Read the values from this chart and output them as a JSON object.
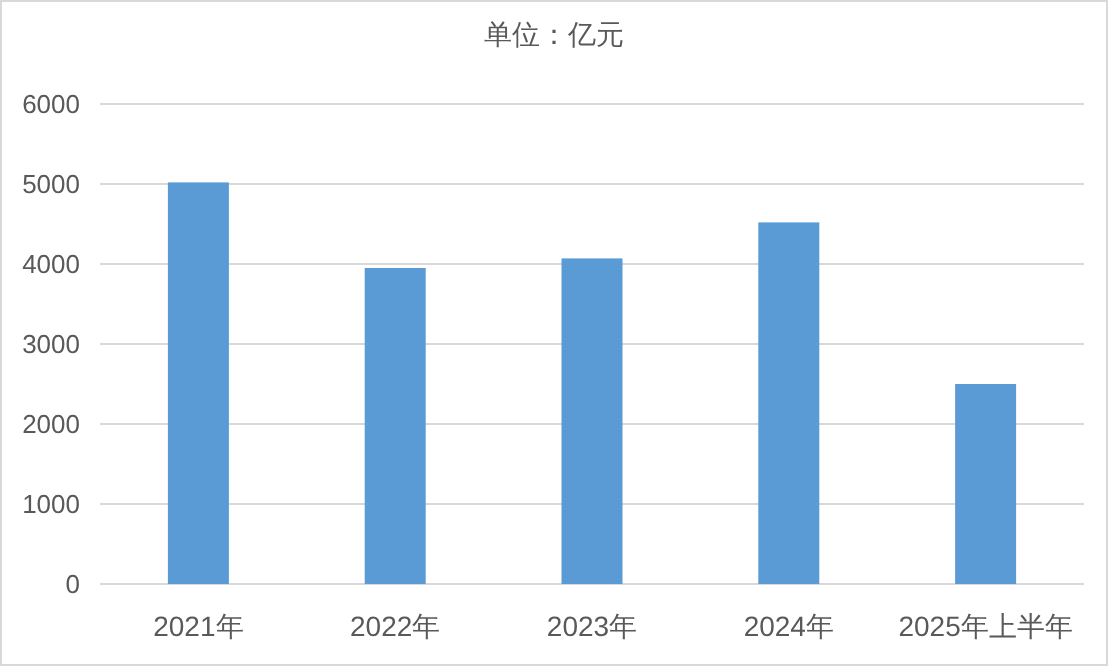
{
  "chart_data": {
    "type": "bar",
    "title": "单位：亿元",
    "categories": [
      "2021年",
      "2022年",
      "2023年",
      "2024年",
      "2025年上半年"
    ],
    "values": [
      5020,
      3950,
      4070,
      4520,
      2500
    ],
    "color": "#5b9bd5",
    "ylim": [
      0,
      6000
    ],
    "yticks": [
      0,
      1000,
      2000,
      3000,
      4000,
      5000,
      6000
    ],
    "grid": "y"
  }
}
